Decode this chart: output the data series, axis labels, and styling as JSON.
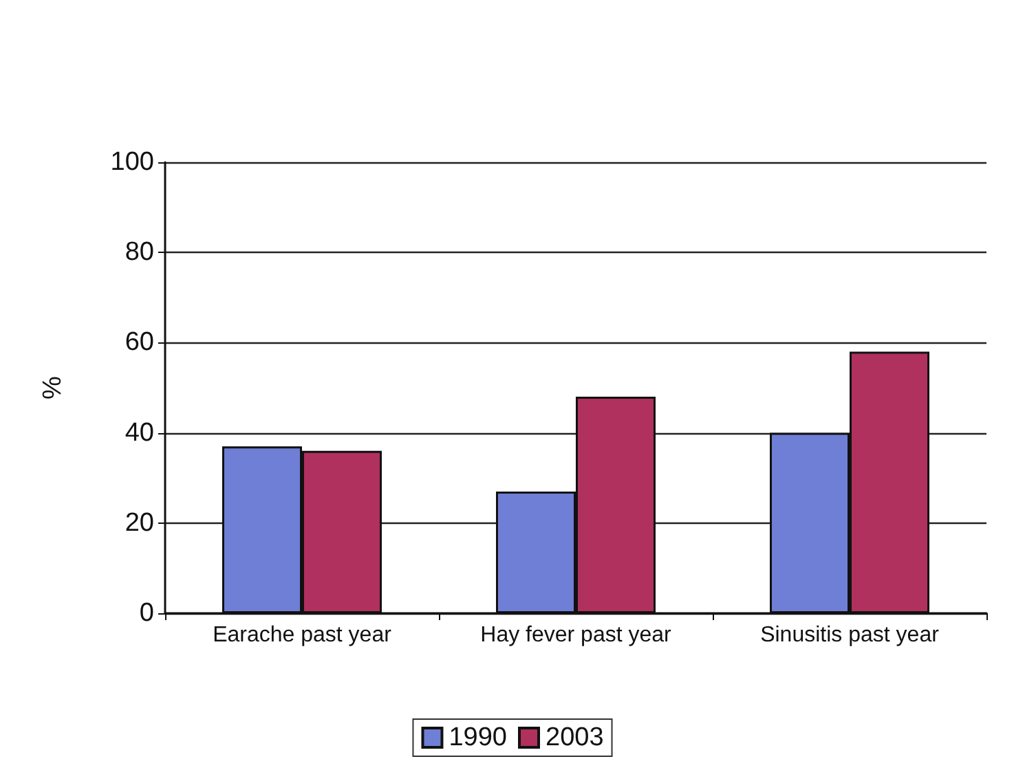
{
  "chart_data": {
    "type": "bar",
    "ylabel": "%",
    "categories": [
      "Earache past year",
      "Hay fever past year",
      "Sinusitis past year"
    ],
    "series": [
      {
        "name": "1990",
        "color": "#6f7fd6",
        "values": [
          37,
          27,
          40
        ]
      },
      {
        "name": "2003",
        "color": "#b0305e",
        "values": [
          36,
          48,
          58
        ]
      }
    ],
    "ylim": [
      0,
      100
    ],
    "yticks": [
      0,
      20,
      40,
      60,
      80,
      100
    ],
    "grid": "y",
    "legend": "bottom"
  }
}
